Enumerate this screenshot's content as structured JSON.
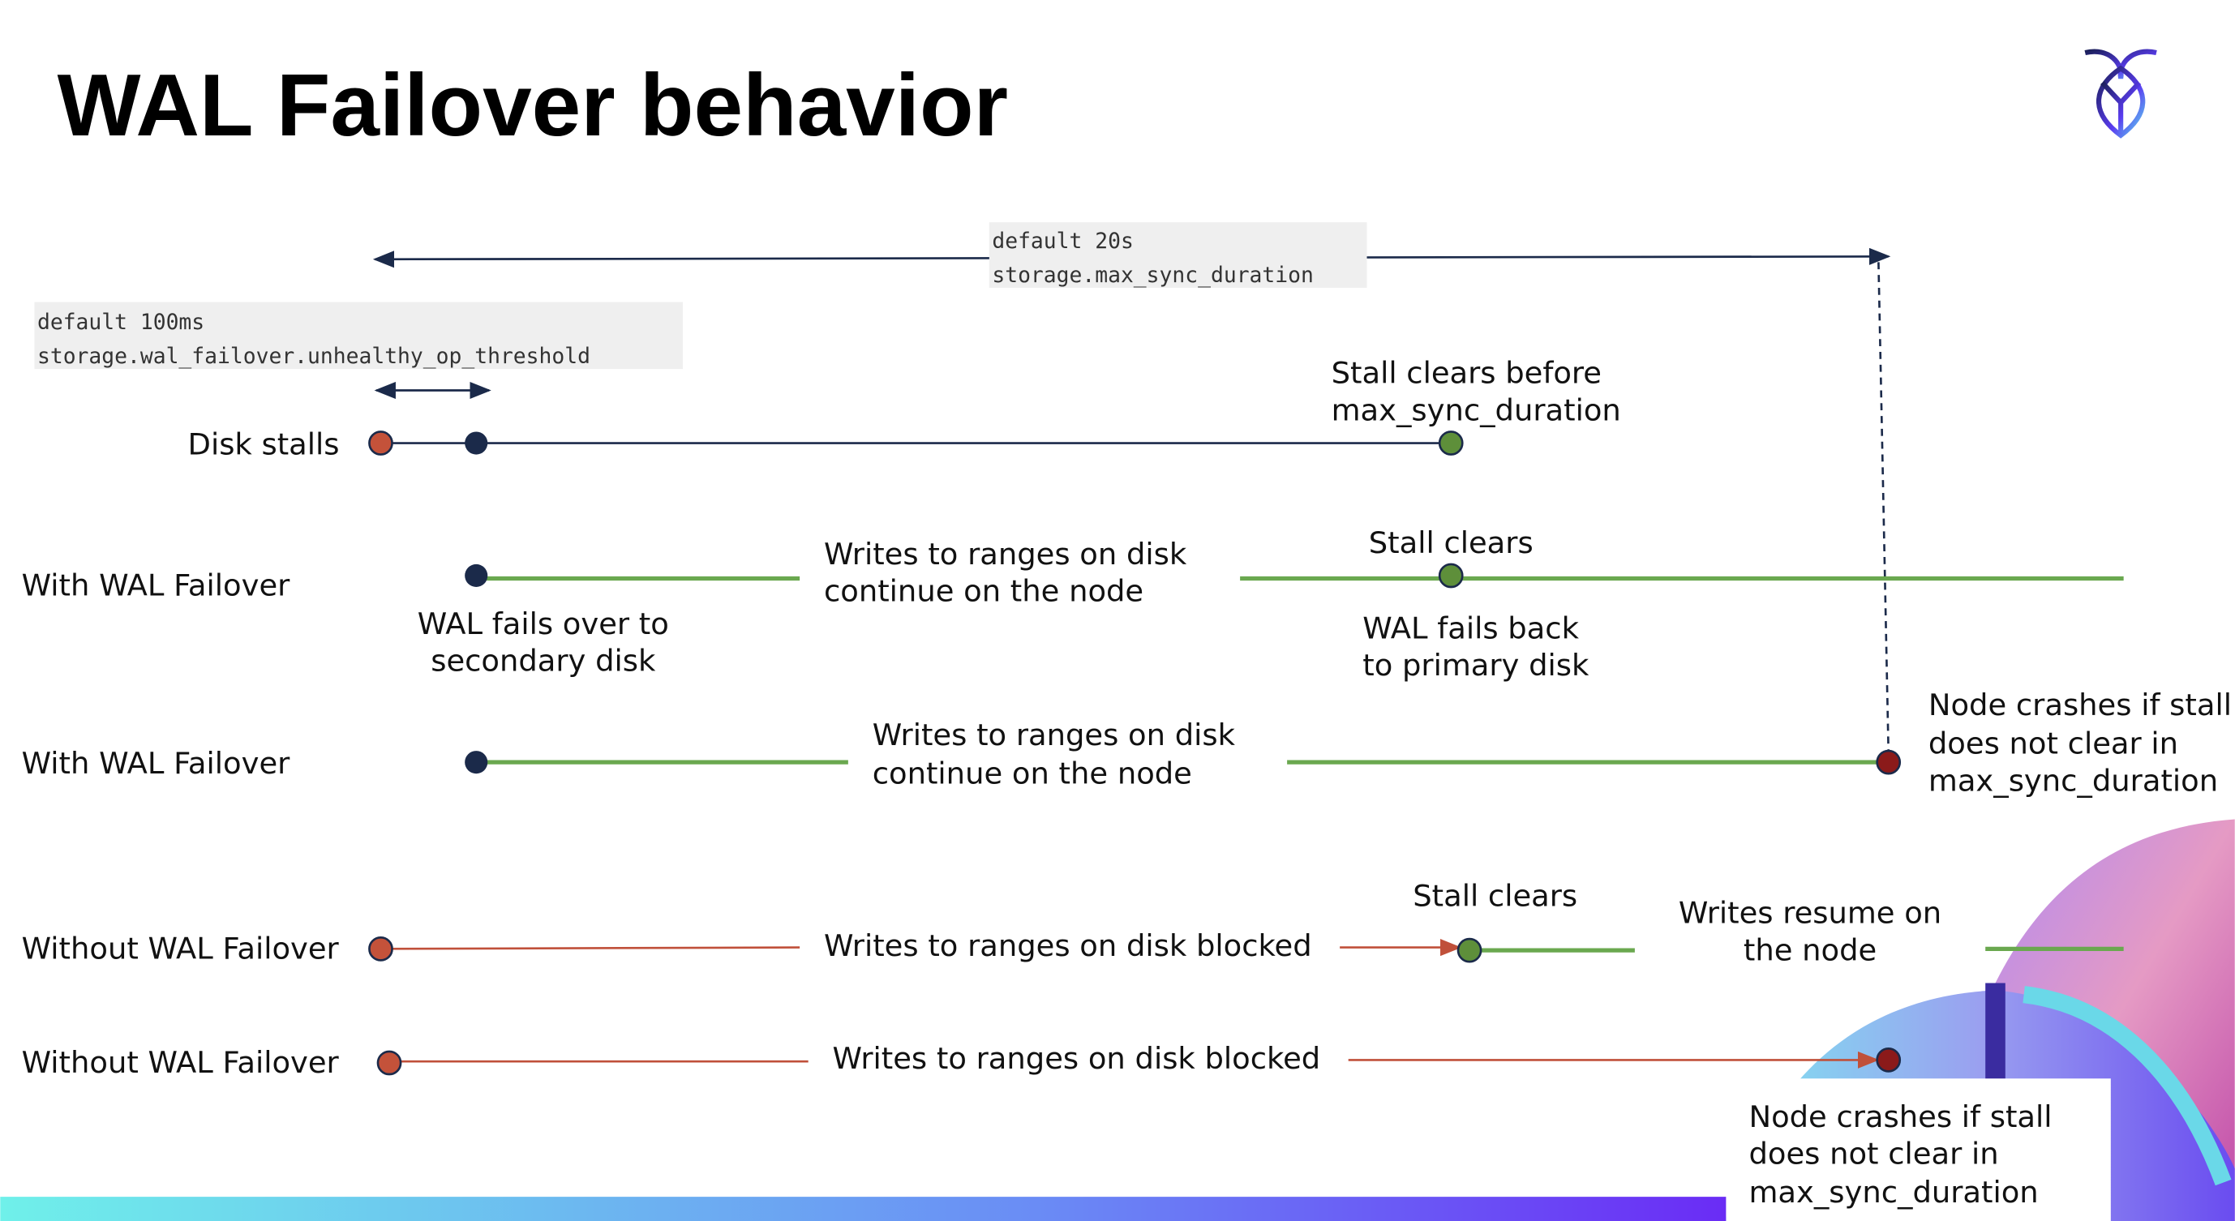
{
  "title": "WAL Failover behavior",
  "logo": {
    "icon": "cockroach-logo-icon"
  },
  "colors": {
    "navy": "#1b2a4a",
    "stall_start": "#c4523a",
    "clear": "#5e8f3a",
    "green_line": "#6aa84f",
    "crash": "#8b1a1a",
    "blocked_line": "#c0503a"
  },
  "settings": {
    "max_sync": {
      "default": "default 20s",
      "name": "storage.max_sync_duration"
    },
    "threshold": {
      "default": "default 100ms",
      "name": "storage.wal_failover.unhealthy_op_threshold"
    }
  },
  "rows": [
    {
      "label": "Disk stalls",
      "notes": [
        "Stall clears before",
        "max_sync_duration"
      ]
    },
    {
      "label": "With WAL Failover",
      "middle": [
        "Writes to ranges on disk",
        "continue on the node"
      ],
      "stall_clears": "Stall clears",
      "failover": [
        "WAL fails over to",
        "secondary disk"
      ],
      "failback": [
        "WAL fails  back",
        "to primary disk"
      ]
    },
    {
      "label": "With WAL Failover",
      "middle": [
        "Writes to ranges on disk",
        "continue on the node"
      ],
      "crash": [
        "Node crashes if stall",
        "does not clear in",
        "max_sync_duration"
      ]
    },
    {
      "label": "Without WAL Failover",
      "middle": "Writes to ranges on disk  blocked",
      "stall_clears": "Stall clears",
      "resume": [
        "Writes resume on",
        "the node"
      ]
    },
    {
      "label": "Without WAL Failover",
      "middle": "Writes to ranges on disk  blocked",
      "crash": [
        "Node crashes if stall",
        "does not clear in",
        "max_sync_duration"
      ]
    }
  ]
}
